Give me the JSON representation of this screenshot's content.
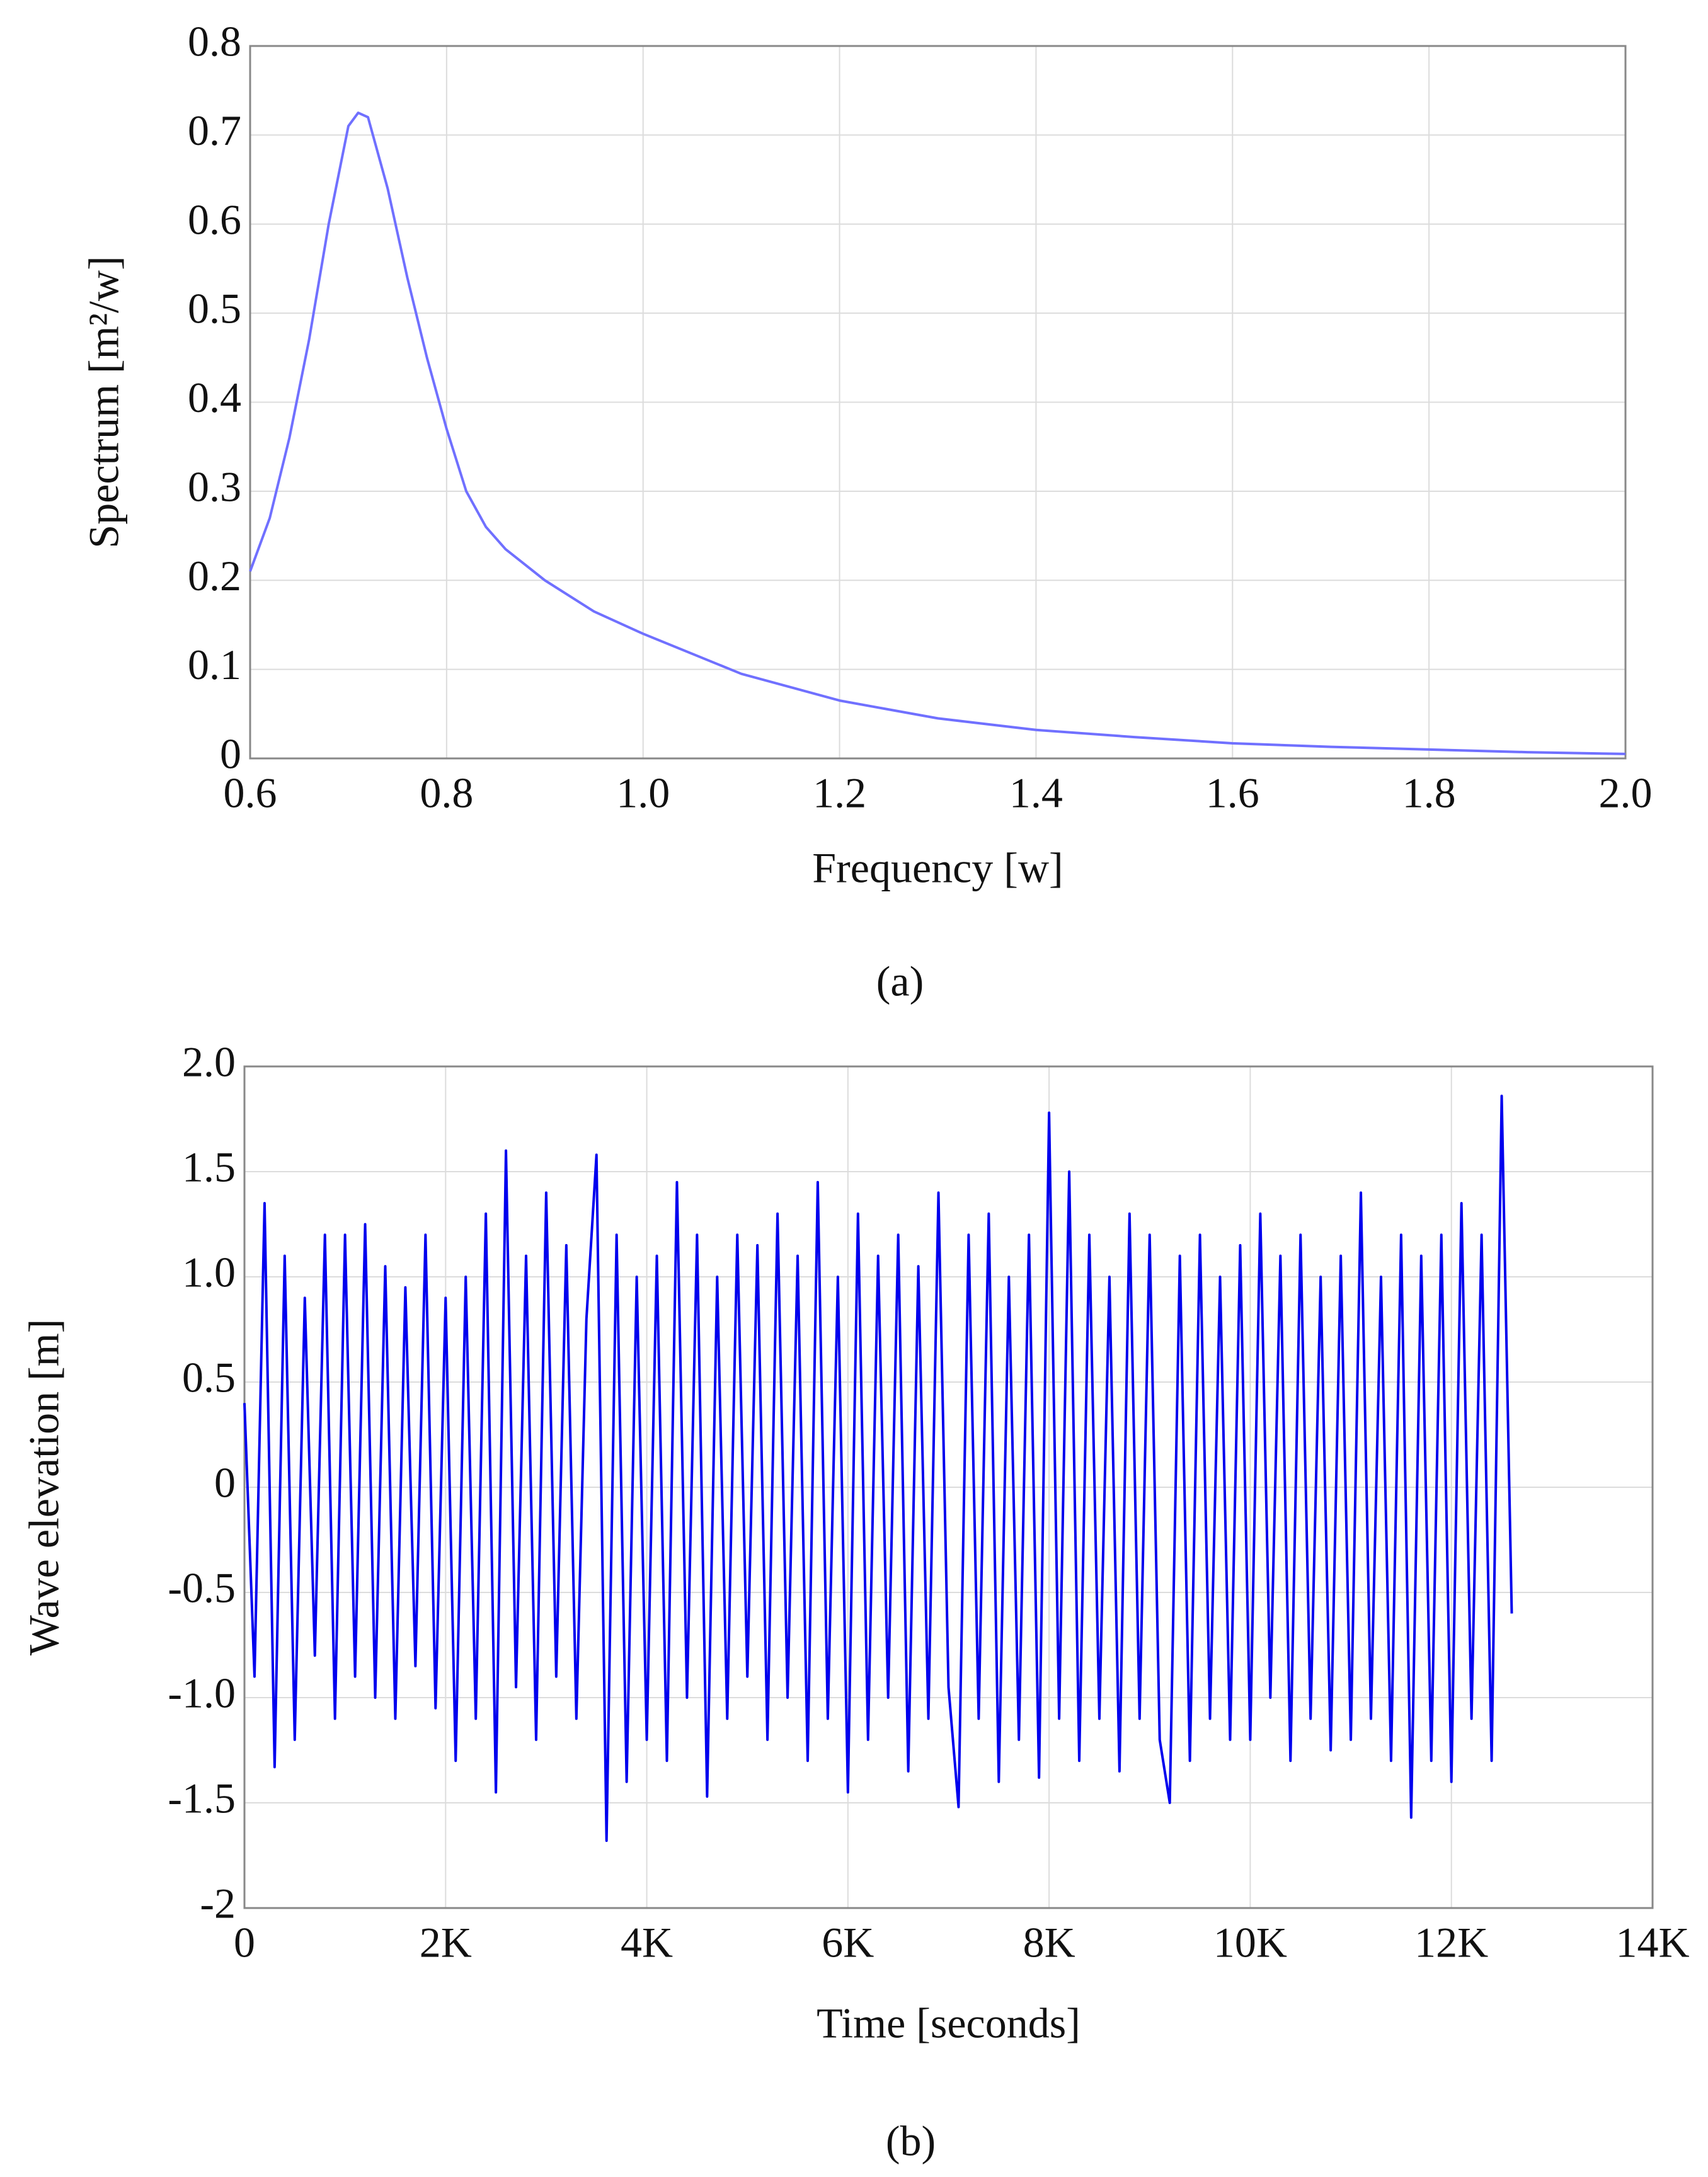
{
  "chart_data": [
    {
      "type": "line",
      "caption": "(a)",
      "x_label": "Frequency [w]",
      "y_label": "Spectrum [m²/w]",
      "color": "#7070ff",
      "grid": true,
      "xlim": [
        0.6,
        2.0
      ],
      "ylim": [
        0,
        0.8
      ],
      "xticks": [
        0.6,
        0.8,
        {
          "value": 1,
          "label": "1.0"
        },
        1.2,
        1.4,
        1.6,
        1.8,
        {
          "value": 2,
          "label": "2.0"
        }
      ],
      "yticks": [
        0,
        0.1,
        0.2,
        0.3,
        0.4,
        0.5,
        0.6,
        0.7,
        0.8
      ],
      "x": [
        0.6,
        0.62,
        0.64,
        0.66,
        0.68,
        0.7,
        0.71,
        0.72,
        0.74,
        0.76,
        0.78,
        0.8,
        0.82,
        0.84,
        0.86,
        0.9,
        0.95,
        1.0,
        1.1,
        1.2,
        1.3,
        1.4,
        1.5,
        1.6,
        1.7,
        1.8,
        1.9,
        2.0
      ],
      "values": [
        0.21,
        0.27,
        0.36,
        0.47,
        0.6,
        0.71,
        0.725,
        0.72,
        0.64,
        0.54,
        0.45,
        0.37,
        0.3,
        0.26,
        0.235,
        0.2,
        0.165,
        0.14,
        0.095,
        0.065,
        0.045,
        0.032,
        0.024,
        0.017,
        0.013,
        0.01,
        0.007,
        0.005
      ]
    },
    {
      "type": "line",
      "caption": "(b)",
      "x_label": "Time [seconds]",
      "y_label": "Wave elevation [m]",
      "color": "#0000ee",
      "grid": true,
      "xlim": [
        0,
        14000
      ],
      "ylim": [
        -2,
        2
      ],
      "xticks": [
        0,
        {
          "value": 2000,
          "label": "2K"
        },
        {
          "value": 4000,
          "label": "4K"
        },
        {
          "value": 6000,
          "label": "6K"
        },
        {
          "value": 8000,
          "label": "8K"
        },
        {
          "value": 10000,
          "label": "10K"
        },
        {
          "value": 12000,
          "label": "12K"
        },
        {
          "value": 14000,
          "label": "14K"
        }
      ],
      "yticks": [
        -2,
        -1.5,
        {
          "value": -1,
          "label": "-1.0"
        },
        -0.5,
        0,
        0.5,
        {
          "value": 1,
          "label": "1.0"
        },
        1.5,
        {
          "value": 2,
          "label": "2.0"
        }
      ],
      "x": [
        0,
        100,
        200,
        300,
        400,
        500,
        600,
        700,
        800,
        900,
        1000,
        1100,
        1200,
        1300,
        1400,
        1500,
        1600,
        1700,
        1800,
        1900,
        2000,
        2100,
        2200,
        2300,
        2400,
        2500,
        2600,
        2700,
        2800,
        2900,
        3000,
        3100,
        3200,
        3300,
        3400,
        3500,
        3600,
        3700,
        3800,
        3900,
        4000,
        4100,
        4200,
        4300,
        4400,
        4500,
        4600,
        4700,
        4800,
        4900,
        5000,
        5100,
        5200,
        5300,
        5400,
        5500,
        5600,
        5700,
        5800,
        5900,
        6000,
        6100,
        6200,
        6300,
        6400,
        6500,
        6600,
        6700,
        6800,
        6900,
        7000,
        7100,
        7200,
        7300,
        7400,
        7500,
        7600,
        7700,
        7800,
        7900,
        8000,
        8100,
        8200,
        8300,
        8400,
        8500,
        8600,
        8700,
        8800,
        8900,
        9000,
        9100,
        9200,
        9300,
        9400,
        9500,
        9600,
        9700,
        9800,
        9900,
        10000,
        10100,
        10200,
        10300,
        10400,
        10500,
        10600,
        10700,
        10800,
        10900,
        11000,
        11100,
        11200,
        11300,
        11400,
        11500,
        11600,
        11700,
        11800,
        11900,
        12000,
        12100,
        12200,
        12300,
        12400,
        12500,
        12600
      ],
      "values": [
        0.4,
        -0.9,
        1.35,
        -1.33,
        1.1,
        -1.2,
        0.9,
        -0.8,
        1.2,
        -1.1,
        1.2,
        -0.9,
        1.25,
        -1.0,
        1.05,
        -1.1,
        0.95,
        -0.85,
        1.2,
        -1.05,
        0.9,
        -1.3,
        1.0,
        -1.1,
        1.3,
        -1.45,
        1.6,
        -0.95,
        1.1,
        -1.2,
        1.4,
        -0.9,
        1.15,
        -1.1,
        0.8,
        1.58,
        -1.68,
        1.2,
        -1.4,
        1.0,
        -1.2,
        1.1,
        -1.3,
        1.45,
        -1.0,
        1.2,
        -1.47,
        1.0,
        -1.1,
        1.2,
        -0.9,
        1.15,
        -1.2,
        1.3,
        -1.0,
        1.1,
        -1.3,
        1.45,
        -1.1,
        1.0,
        -1.45,
        1.3,
        -1.2,
        1.1,
        -1.0,
        1.2,
        -1.35,
        1.05,
        -1.1,
        1.4,
        -0.95,
        -1.52,
        1.2,
        -1.1,
        1.3,
        -1.4,
        1.0,
        -1.2,
        1.2,
        -1.38,
        1.78,
        -1.1,
        1.5,
        -1.3,
        1.2,
        -1.1,
        1.0,
        -1.35,
        1.3,
        -1.1,
        1.2,
        -1.2,
        -1.5,
        1.1,
        -1.3,
        1.2,
        -1.1,
        1.0,
        -1.2,
        1.15,
        -1.2,
        1.3,
        -1.0,
        1.1,
        -1.3,
        1.2,
        -1.1,
        1.0,
        -1.25,
        1.1,
        -1.2,
        1.4,
        -1.1,
        1.0,
        -1.3,
        1.2,
        -1.57,
        1.1,
        -1.3,
        1.2,
        -1.4,
        1.35,
        -1.1,
        1.2,
        -1.3,
        1.86,
        -0.6
      ]
    }
  ]
}
